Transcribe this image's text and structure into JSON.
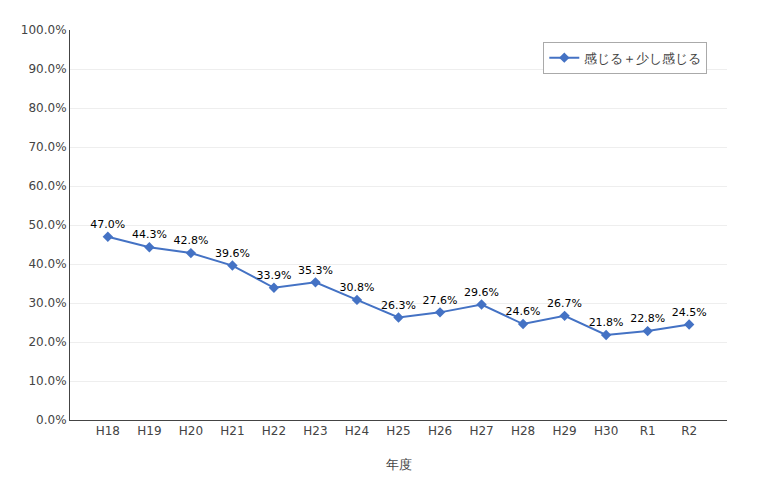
{
  "chart_data": {
    "type": "line",
    "xlabel": "年度",
    "categories": [
      "H18",
      "H19",
      "H20",
      "H21",
      "H22",
      "H23",
      "H24",
      "H25",
      "H26",
      "H27",
      "H28",
      "H29",
      "H30",
      "R1",
      "R2"
    ],
    "series": [
      {
        "name": "感じる＋少し感じる",
        "color": "#4472C4",
        "marker": "diamond",
        "values": [
          47.0,
          44.3,
          42.8,
          39.6,
          33.9,
          35.3,
          30.8,
          26.3,
          27.6,
          29.6,
          24.6,
          26.7,
          21.8,
          22.8,
          24.5
        ],
        "value_labels": [
          "47.0%",
          "44.3%",
          "42.8%",
          "39.6%",
          "33.9%",
          "35.3%",
          "30.8%",
          "26.3%",
          "27.6%",
          "29.6%",
          "24.6%",
          "26.7%",
          "21.8%",
          "22.8%",
          "24.5%"
        ]
      }
    ],
    "ylim": [
      0,
      100
    ],
    "yticks": [
      {
        "value": 0,
        "label": "0.0%"
      },
      {
        "value": 10,
        "label": "10.0%"
      },
      {
        "value": 20,
        "label": "20.0%"
      },
      {
        "value": 30,
        "label": "30.0%"
      },
      {
        "value": 40,
        "label": "40.0%"
      },
      {
        "value": 50,
        "label": "50.0%"
      },
      {
        "value": 60,
        "label": "60.0%"
      },
      {
        "value": 70,
        "label": "70.0%"
      },
      {
        "value": 80,
        "label": "80.0%"
      },
      {
        "value": 90,
        "label": "90.0%"
      },
      {
        "value": 100,
        "label": "100.0%"
      }
    ],
    "grid": true,
    "legend": "upper right",
    "data_labels": true
  }
}
